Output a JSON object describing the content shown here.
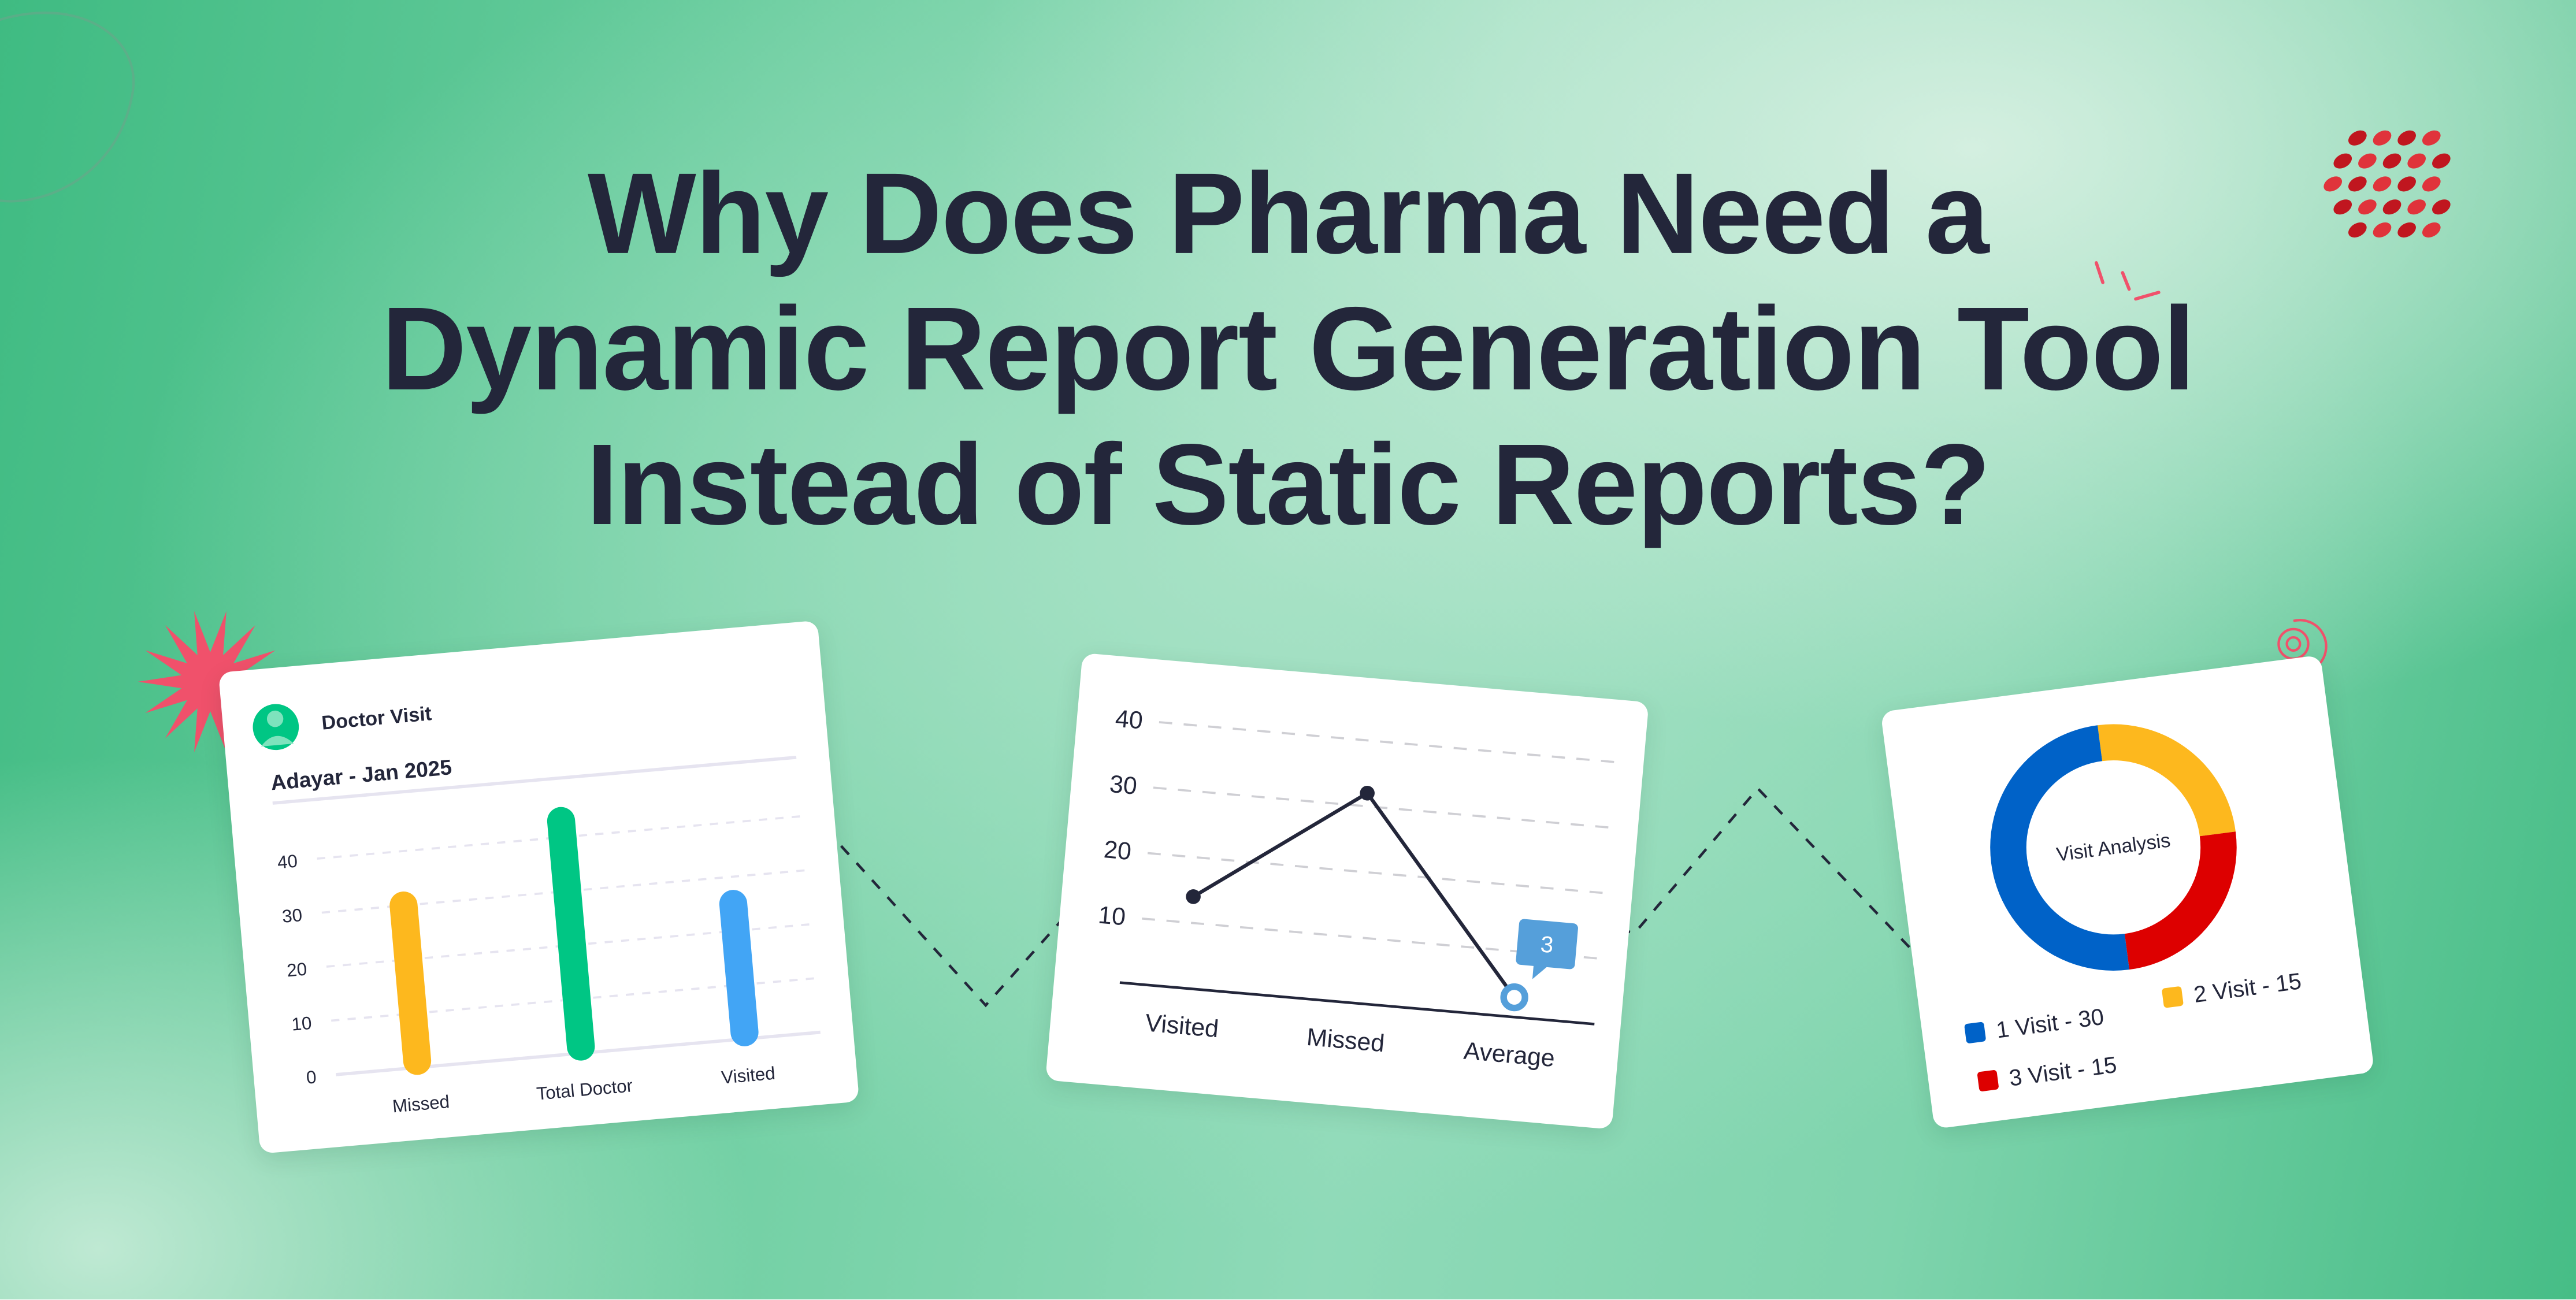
{
  "headline": {
    "line1": "Why Does Pharma Need a",
    "line2": "Dynamic Report Generation Tool",
    "line3": "Instead of Static Reports?"
  },
  "colors": {
    "text": "#23263a",
    "yellow": "#fdb81e",
    "green": "#00c684",
    "blue_bar": "#42a5f5",
    "donut_blue": "#0062c8",
    "donut_red": "#dd0000",
    "callout_blue": "#559fda",
    "accent_pink": "#f0516b"
  },
  "icons": [
    "doctor-avatar-icon",
    "starburst-icon",
    "spiral-icon",
    "molecule-logo-icon",
    "spark-icon"
  ],
  "chart_data": [
    {
      "type": "bar",
      "title": "Doctor Visit",
      "subtitle": "Adayar - Jan 2025",
      "categories": [
        "Missed",
        "Total Doctor",
        "Visited"
      ],
      "values": [
        30,
        43,
        25
      ],
      "colors": [
        "#fdb81e",
        "#00c684",
        "#42a5f5"
      ],
      "yticks": [
        "0",
        "10",
        "20",
        "30",
        "40"
      ],
      "ylim": [
        0,
        40
      ],
      "grid": true
    },
    {
      "type": "line",
      "categories": [
        "Visited",
        "Missed",
        "Average"
      ],
      "values": [
        14,
        32,
        3
      ],
      "yticks": [
        "10",
        "20",
        "30",
        "40"
      ],
      "ylim": [
        0,
        40
      ],
      "grid": true,
      "callout": "3"
    },
    {
      "type": "pie",
      "center_label": "Visit Analysis",
      "slices": [
        {
          "label": "1 Visit - 30",
          "value": 30,
          "color": "#0062c8"
        },
        {
          "label": "2 Visit - 15",
          "value": 15,
          "color": "#fdb81e"
        },
        {
          "label": "3 Visit - 15",
          "value": 15,
          "color": "#dd0000"
        }
      ]
    }
  ]
}
